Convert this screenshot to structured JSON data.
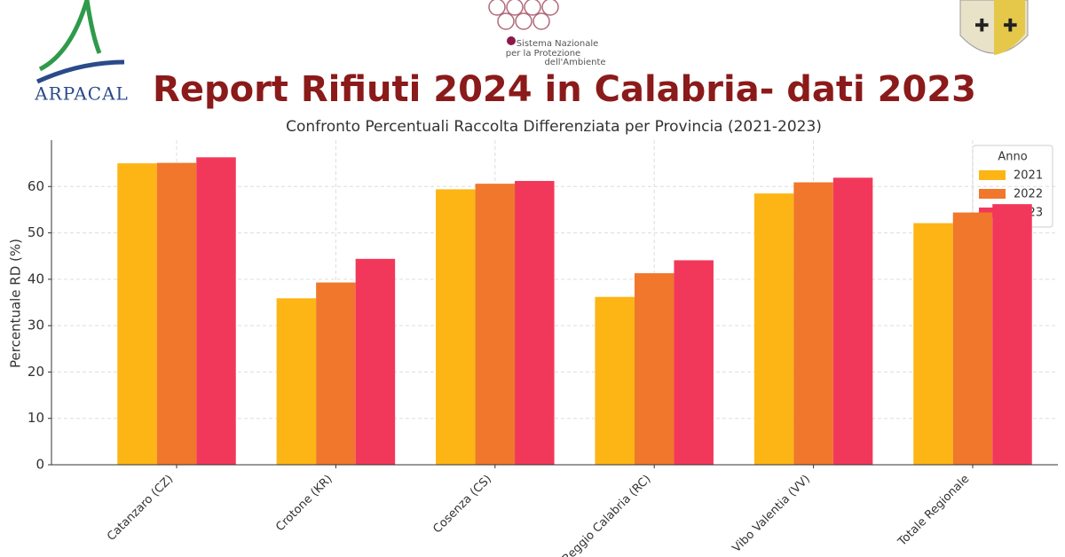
{
  "header": {
    "logo_left": "ARPACAL",
    "logo_center": [
      "Sistema Nazionale",
      "per la Protezione",
      "dell'Ambiente"
    ]
  },
  "chart_data": {
    "type": "bar",
    "title": "Report Rifiuti 2024 in Calabria- dati 2023",
    "subtitle": "Confronto Percentuali Raccolta Differenziata per Provincia (2021-2023)",
    "y_label": "Percentuale RD (%)",
    "legend_title": "Anno",
    "legend_position": "upper right",
    "categories": [
      "Catanzaro (CZ)",
      "Crotone (KR)",
      "Cosenza (CS)",
      "Reggio Calabria (RC)",
      "Vibo Valentia (VV)",
      "Totale Regionale"
    ],
    "series": [
      {
        "name": "2021",
        "color": "#fdb515",
        "values": [
          65.0,
          35.9,
          59.4,
          36.2,
          58.5,
          52.1
        ]
      },
      {
        "name": "2022",
        "color": "#f0772b",
        "values": [
          65.1,
          39.3,
          60.6,
          41.3,
          60.9,
          54.4
        ]
      },
      {
        "name": "2023",
        "color": "#f2385a",
        "values": [
          66.3,
          44.4,
          61.2,
          44.1,
          61.9,
          56.2
        ]
      }
    ],
    "ylim": [
      0,
      70
    ],
    "yticks": [
      0,
      10,
      20,
      30,
      40,
      50,
      60
    ],
    "grid": true
  }
}
